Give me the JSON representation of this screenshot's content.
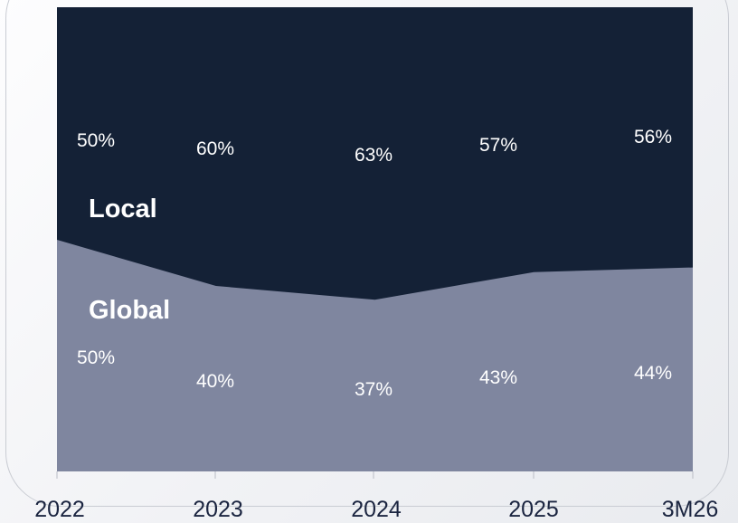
{
  "chart_data": {
    "type": "area",
    "stacked": true,
    "percent": true,
    "categories": [
      "2022",
      "2023",
      "2024",
      "2025",
      "3M26"
    ],
    "series": [
      {
        "name": "Global",
        "values": [
          50,
          40,
          37,
          43,
          44
        ],
        "labels": [
          "50%",
          "40%",
          "37%",
          "43%",
          "44%"
        ],
        "color": "#7f869f"
      },
      {
        "name": "Local",
        "values": [
          50,
          60,
          63,
          57,
          56
        ],
        "labels": [
          "50%",
          "60%",
          "63%",
          "57%",
          "56%"
        ],
        "color": "#142136"
      }
    ],
    "ylim": [
      0,
      100
    ],
    "grid": false,
    "legend": "inline",
    "title": "",
    "xlabel": "",
    "ylabel": "",
    "tick_color": "#1b2540",
    "label_color": "#ffffff"
  }
}
